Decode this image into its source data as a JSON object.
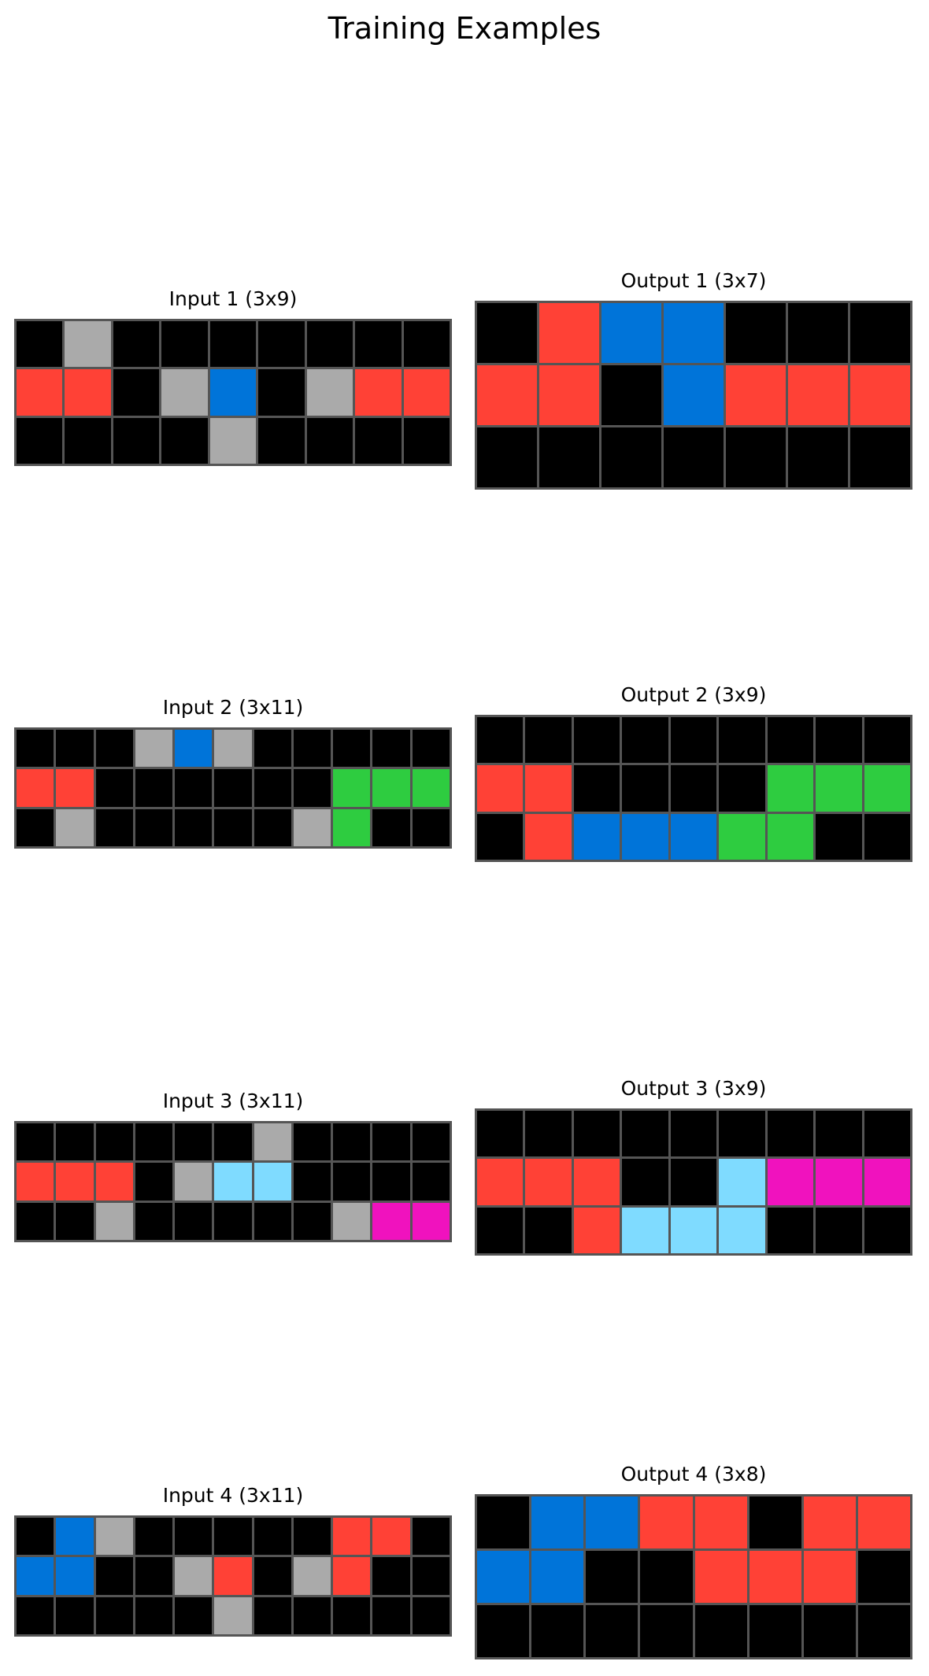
{
  "title": "Training Examples",
  "palette": {
    "0": "#000000",
    "1": "#0074D9",
    "2": "#FF4136",
    "3": "#2ECC40",
    "5": "#AAAAAA",
    "6": "#F012BE",
    "8": "#7FDBFF"
  },
  "examples": [
    {
      "input": {
        "label": "Input 1 (3x9)",
        "grid": [
          [
            0,
            5,
            0,
            0,
            0,
            0,
            0,
            0,
            0
          ],
          [
            2,
            2,
            0,
            5,
            1,
            0,
            5,
            2,
            2
          ],
          [
            0,
            0,
            0,
            0,
            5,
            0,
            0,
            0,
            0
          ]
        ]
      },
      "output": {
        "label": "Output 1 (3x7)",
        "grid": [
          [
            0,
            2,
            1,
            1,
            0,
            0,
            0
          ],
          [
            2,
            2,
            0,
            1,
            2,
            2,
            2
          ],
          [
            0,
            0,
            0,
            0,
            0,
            0,
            0
          ]
        ]
      }
    },
    {
      "input": {
        "label": "Input 2 (3x11)",
        "grid": [
          [
            0,
            0,
            0,
            5,
            1,
            5,
            0,
            0,
            0,
            0,
            0
          ],
          [
            2,
            2,
            0,
            0,
            0,
            0,
            0,
            0,
            3,
            3,
            3
          ],
          [
            0,
            5,
            0,
            0,
            0,
            0,
            0,
            5,
            3,
            0,
            0
          ]
        ]
      },
      "output": {
        "label": "Output 2 (3x9)",
        "grid": [
          [
            0,
            0,
            0,
            0,
            0,
            0,
            0,
            0,
            0
          ],
          [
            2,
            2,
            0,
            0,
            0,
            0,
            3,
            3,
            3
          ],
          [
            0,
            2,
            1,
            1,
            1,
            3,
            3,
            0,
            0
          ]
        ]
      }
    },
    {
      "input": {
        "label": "Input 3 (3x11)",
        "grid": [
          [
            0,
            0,
            0,
            0,
            0,
            0,
            5,
            0,
            0,
            0,
            0
          ],
          [
            2,
            2,
            2,
            0,
            5,
            8,
            8,
            0,
            0,
            0,
            0
          ],
          [
            0,
            0,
            5,
            0,
            0,
            0,
            0,
            0,
            5,
            6,
            6
          ]
        ]
      },
      "output": {
        "label": "Output 3 (3x9)",
        "grid": [
          [
            0,
            0,
            0,
            0,
            0,
            0,
            0,
            0,
            0
          ],
          [
            2,
            2,
            2,
            0,
            0,
            8,
            6,
            6,
            6
          ],
          [
            0,
            0,
            2,
            8,
            8,
            8,
            0,
            0,
            0
          ]
        ]
      }
    },
    {
      "input": {
        "label": "Input 4 (3x11)",
        "grid": [
          [
            0,
            1,
            5,
            0,
            0,
            0,
            0,
            0,
            2,
            2,
            0
          ],
          [
            1,
            1,
            0,
            0,
            5,
            2,
            0,
            5,
            2,
            0,
            0
          ],
          [
            0,
            0,
            0,
            0,
            0,
            5,
            0,
            0,
            0,
            0,
            0
          ]
        ]
      },
      "output": {
        "label": "Output 4 (3x8)",
        "grid": [
          [
            0,
            1,
            1,
            2,
            2,
            0,
            2,
            2
          ],
          [
            1,
            1,
            0,
            0,
            2,
            2,
            2,
            0
          ],
          [
            0,
            0,
            0,
            0,
            0,
            0,
            0,
            0
          ]
        ]
      }
    }
  ]
}
